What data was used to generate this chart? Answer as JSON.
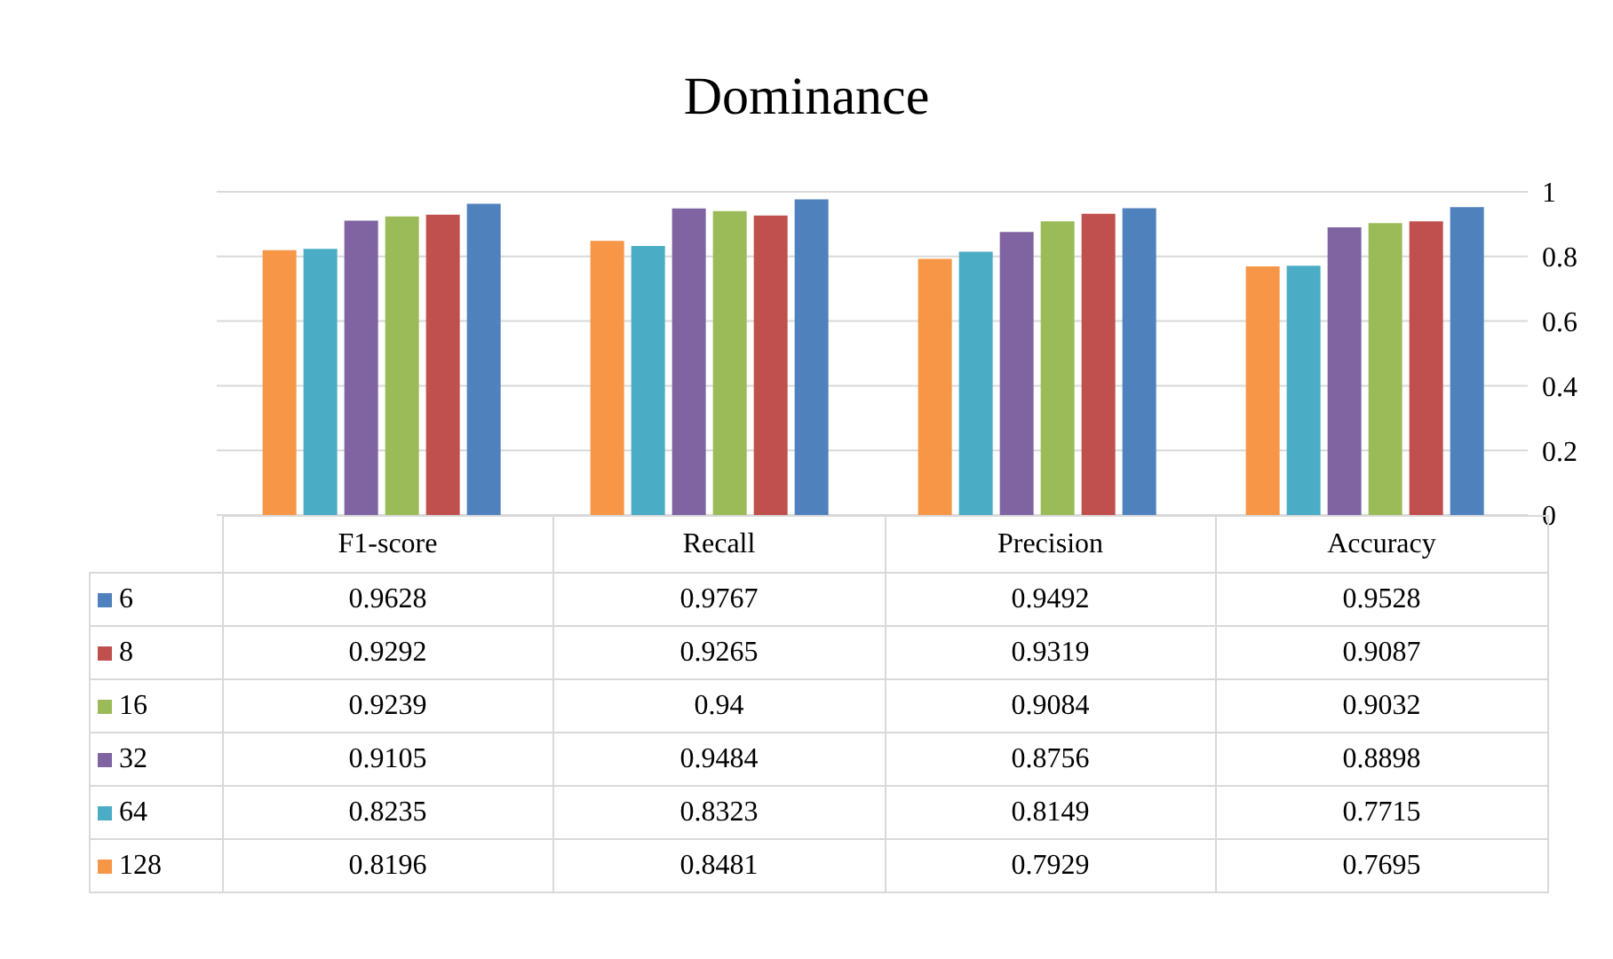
{
  "chart_data": {
    "type": "bar",
    "title": "Dominance",
    "categories": [
      "F1-score",
      "Recall",
      "Precision",
      "Accuracy"
    ],
    "series": [
      {
        "name": "6",
        "color": "#4f81bd",
        "values": [
          0.9628,
          0.9767,
          0.9492,
          0.9528
        ]
      },
      {
        "name": "8",
        "color": "#c0504d",
        "values": [
          0.9292,
          0.9265,
          0.9319,
          0.9087
        ]
      },
      {
        "name": "16",
        "color": "#9bbb59",
        "values": [
          0.9239,
          0.94,
          0.9084,
          0.9032
        ]
      },
      {
        "name": "32",
        "color": "#8064a2",
        "values": [
          0.9105,
          0.9484,
          0.8756,
          0.8898
        ]
      },
      {
        "name": "64",
        "color": "#4bacc6",
        "values": [
          0.8235,
          0.8323,
          0.8149,
          0.7715
        ]
      },
      {
        "name": "128",
        "color": "#f79646",
        "values": [
          0.8196,
          0.8481,
          0.7929,
          0.7695
        ]
      }
    ],
    "ylim": [
      0,
      1
    ],
    "yticks": [
      0,
      0.2,
      0.4,
      0.6,
      0.8,
      1
    ],
    "grid": "y",
    "legend": "bottom left",
    "data_labels": true
  }
}
